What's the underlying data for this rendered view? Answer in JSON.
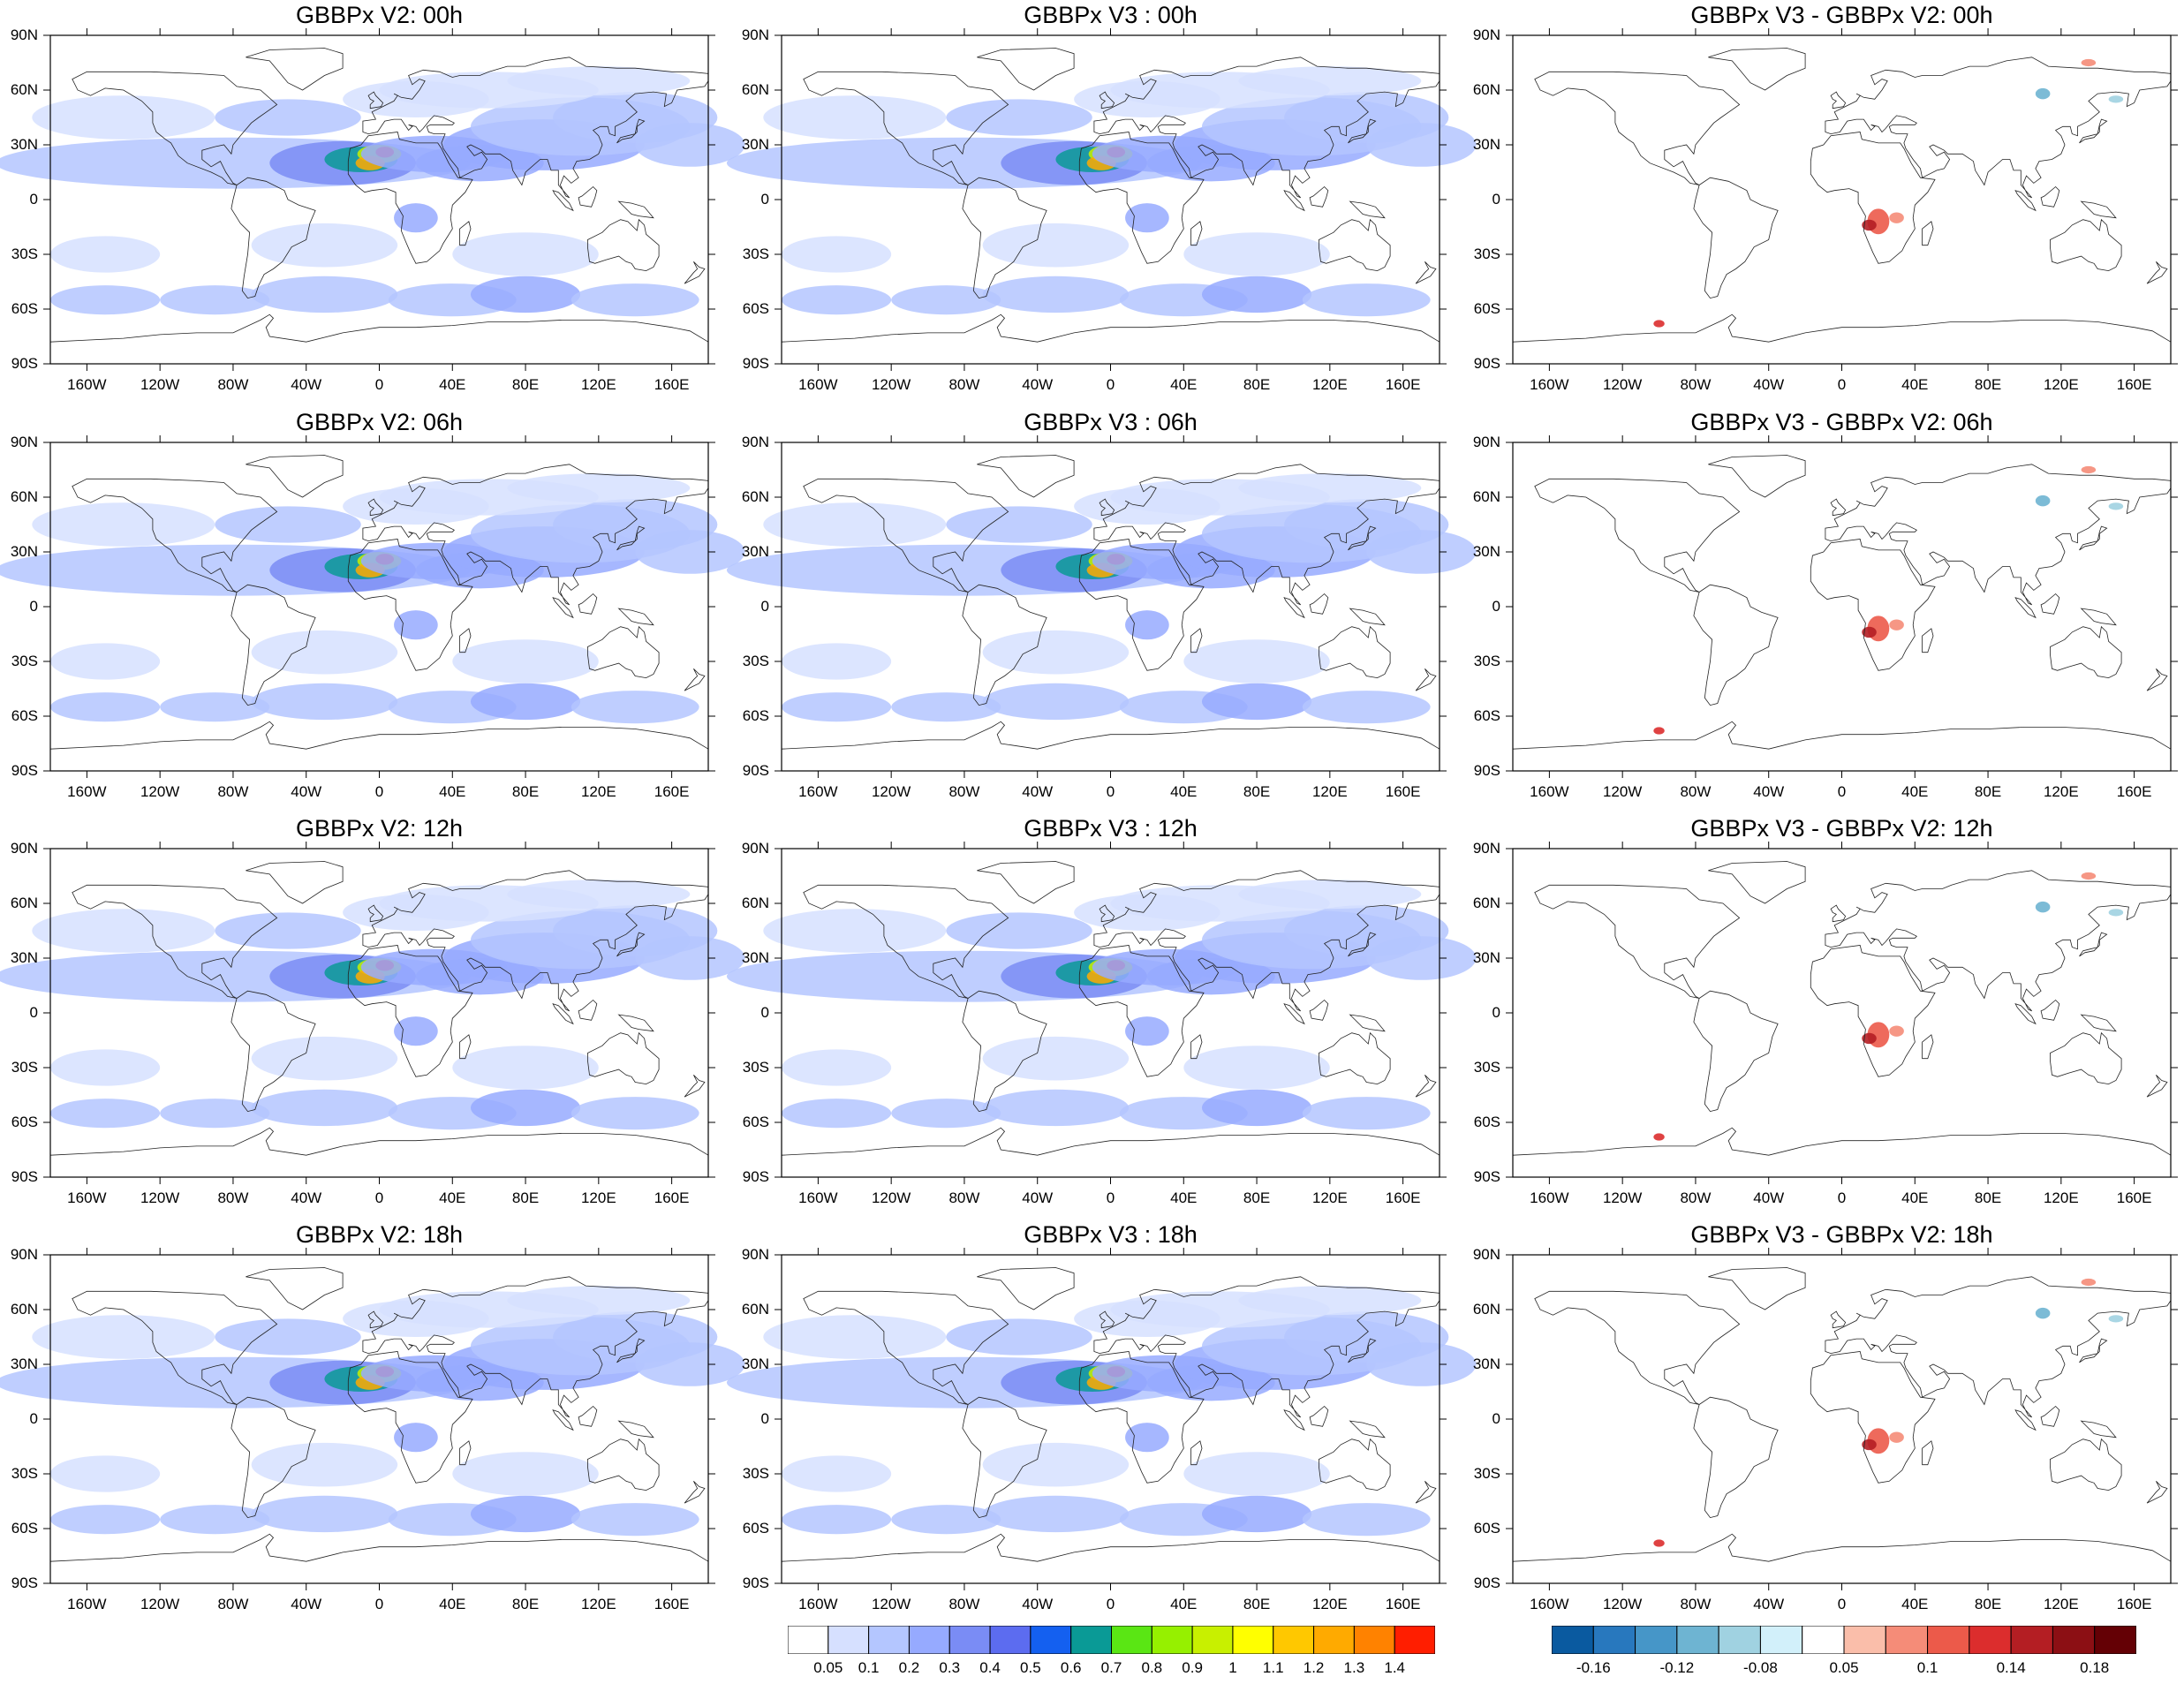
{
  "figure": {
    "columns": [
      {
        "id": "v2",
        "colormap": "aod"
      },
      {
        "id": "v3",
        "colormap": "aod"
      },
      {
        "id": "diff",
        "colormap": "diff"
      }
    ],
    "panels": [
      {
        "title": "GBBPx V2: 00h",
        "row": 0,
        "col": 0
      },
      {
        "title": "GBBPx V3 : 00h",
        "row": 0,
        "col": 1
      },
      {
        "title": "GBBPx V3 - GBBPx V2: 00h",
        "row": 0,
        "col": 2
      },
      {
        "title": "GBBPx V2: 06h",
        "row": 1,
        "col": 0
      },
      {
        "title": "GBBPx V3 : 06h",
        "row": 1,
        "col": 1
      },
      {
        "title": "GBBPx V3 - GBBPx V2: 06h",
        "row": 1,
        "col": 2
      },
      {
        "title": "GBBPx V2: 12h",
        "row": 2,
        "col": 0
      },
      {
        "title": "GBBPx V3 : 12h",
        "row": 2,
        "col": 1
      },
      {
        "title": "GBBPx V3 - GBBPx V2: 12h",
        "row": 2,
        "col": 2
      },
      {
        "title": "GBBPx V2: 18h",
        "row": 3,
        "col": 0
      },
      {
        "title": "GBBPx V3 : 18h",
        "row": 3,
        "col": 1
      },
      {
        "title": "GBBPx V3 - GBBPx V2: 18h",
        "row": 3,
        "col": 2
      }
    ],
    "lat_ticks": [
      {
        "value": 90,
        "label": "90N"
      },
      {
        "value": 60,
        "label": "60N"
      },
      {
        "value": 30,
        "label": "30N"
      },
      {
        "value": 0,
        "label": "0"
      },
      {
        "value": -30,
        "label": "30S"
      },
      {
        "value": -60,
        "label": "60S"
      },
      {
        "value": -90,
        "label": "90S"
      }
    ],
    "lon_ticks": [
      {
        "value": -160,
        "label": "160W"
      },
      {
        "value": -120,
        "label": "120W"
      },
      {
        "value": -80,
        "label": "80W"
      },
      {
        "value": -40,
        "label": "40W"
      },
      {
        "value": 0,
        "label": "0"
      },
      {
        "value": 40,
        "label": "40E"
      },
      {
        "value": 80,
        "label": "80E"
      },
      {
        "value": 120,
        "label": "120E"
      },
      {
        "value": 160,
        "label": "160E"
      }
    ],
    "lon_range": [
      -180,
      180
    ],
    "lat_range": [
      -90,
      90
    ]
  },
  "colorbars": {
    "aod": {
      "colors": [
        "#ffffff",
        "#d6e0ff",
        "#b4c6ff",
        "#96aaff",
        "#7a8cf5",
        "#5c6cf0",
        "#1460f0",
        "#0a9a96",
        "#5ae614",
        "#96f000",
        "#c8f000",
        "#ffff00",
        "#ffc800",
        "#ffaa00",
        "#ff8200",
        "#ff1e00"
      ],
      "labels": [
        "0.05",
        "0.1",
        "0.2",
        "0.3",
        "0.4",
        "0.5",
        "0.6",
        "0.7",
        "0.8",
        "0.9",
        "1",
        "1.1",
        "1.2",
        "1.3",
        "1.4"
      ]
    },
    "diff": {
      "colors": [
        "#0a5aa0",
        "#2878be",
        "#4696c8",
        "#6eb4d2",
        "#a0d2e1",
        "#d2f0fa",
        "#ffffff",
        "#fabeaa",
        "#f58c78",
        "#ec5a4a",
        "#dc2d2d",
        "#b41e23",
        "#8c0f14",
        "#640005"
      ],
      "labels": [
        "-0.16",
        "-0.12",
        "-0.08",
        "0.05",
        "0.1",
        "0.14",
        "0.18"
      ],
      "label_slots": [
        1,
        3,
        5,
        7,
        9,
        11,
        13
      ]
    }
  }
}
